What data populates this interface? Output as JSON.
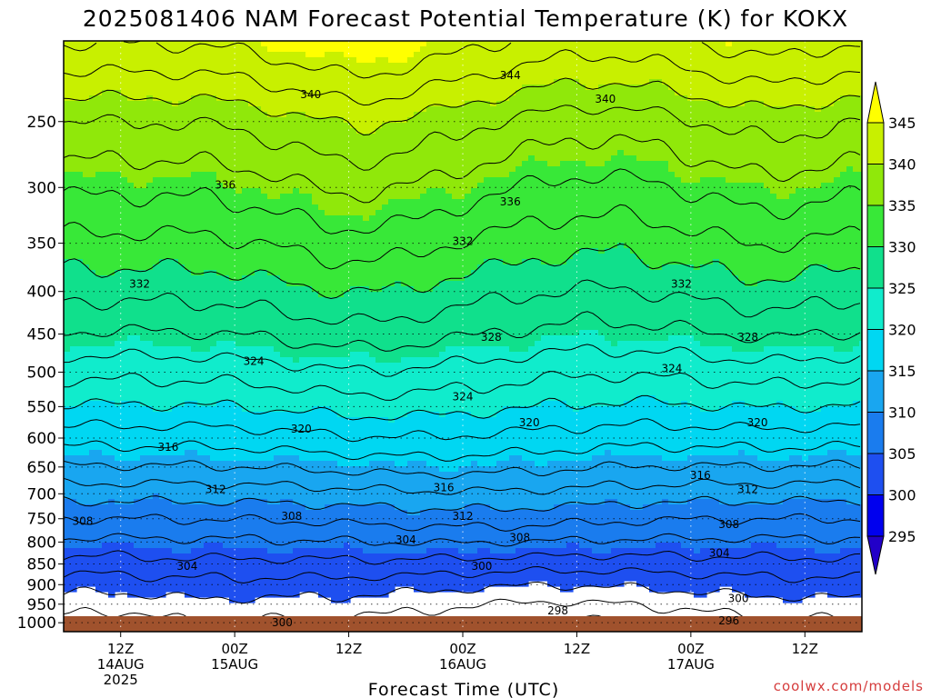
{
  "title": "2025081406 NAM Forecast Potential Temperature (K) for KOKX",
  "credit": "coolwx.com/models",
  "chart_data": {
    "type": "heatmap",
    "title": "2025081406 NAM Forecast Potential Temperature (K) for KOKX",
    "xlabel": "Forecast Time (UTC)",
    "ylabel": "",
    "x_range_hours": [
      6,
      90
    ],
    "y_range_hpa": [
      200,
      1025
    ],
    "pressure_ticks": [
      250,
      300,
      350,
      400,
      450,
      500,
      550,
      600,
      650,
      700,
      750,
      800,
      850,
      900,
      950,
      1000
    ],
    "x_ticks": [
      {
        "hour": 12,
        "lines": [
          "12Z",
          "14AUG",
          "2025"
        ]
      },
      {
        "hour": 24,
        "lines": [
          "00Z",
          "15AUG"
        ]
      },
      {
        "hour": 36,
        "lines": [
          "12Z"
        ]
      },
      {
        "hour": 48,
        "lines": [
          "00Z",
          "16AUG"
        ]
      },
      {
        "hour": 60,
        "lines": [
          "12Z"
        ]
      },
      {
        "hour": 72,
        "lines": [
          "00Z",
          "17AUG"
        ]
      },
      {
        "hour": 84,
        "lines": [
          "12Z"
        ]
      }
    ],
    "grid": true,
    "colorbar_levels": [
      295,
      300,
      305,
      310,
      315,
      320,
      325,
      330,
      335,
      340,
      345
    ],
    "colorbar_colors": [
      "#2200c8",
      "#0000ee",
      "#1e4ff0",
      "#1a7cee",
      "#19a6f0",
      "#00d7f2",
      "#10eccc",
      "#10e08c",
      "#38e838",
      "#90e80a",
      "#c8f000",
      "#ffff00"
    ],
    "level_values": [
      {
        "p": 1000,
        "theta": 297.8
      },
      {
        "p": 950,
        "theta": 299.4
      },
      {
        "p": 900,
        "theta": 301.3
      },
      {
        "p": 850,
        "theta": 303.4
      },
      {
        "p": 800,
        "theta": 305.6
      },
      {
        "p": 750,
        "theta": 308.0
      },
      {
        "p": 700,
        "theta": 310.8
      },
      {
        "p": 650,
        "theta": 313.8
      },
      {
        "p": 600,
        "theta": 316.8
      },
      {
        "p": 550,
        "theta": 319.8
      },
      {
        "p": 500,
        "theta": 322.6
      },
      {
        "p": 450,
        "theta": 325.8
      },
      {
        "p": 400,
        "theta": 328.6
      },
      {
        "p": 350,
        "theta": 331.4
      },
      {
        "p": 300,
        "theta": 334.4
      },
      {
        "p": 250,
        "theta": 338.0
      },
      {
        "p": 200,
        "theta": 344.2
      }
    ],
    "contour_interval": 2,
    "contour_labels": [
      {
        "value": "340",
        "hour": 32,
        "p": 232
      },
      {
        "value": "344",
        "hour": 53,
        "p": 220
      },
      {
        "value": "340",
        "hour": 63,
        "p": 235
      },
      {
        "value": "336",
        "hour": 23,
        "p": 298
      },
      {
        "value": "336",
        "hour": 53,
        "p": 312
      },
      {
        "value": "332",
        "hour": 48,
        "p": 348
      },
      {
        "value": "332",
        "hour": 14,
        "p": 392
      },
      {
        "value": "332",
        "hour": 71,
        "p": 392
      },
      {
        "value": "328",
        "hour": 51,
        "p": 454
      },
      {
        "value": "328",
        "hour": 78,
        "p": 454
      },
      {
        "value": "324",
        "hour": 26,
        "p": 485
      },
      {
        "value": "324",
        "hour": 70,
        "p": 495
      },
      {
        "value": "324",
        "hour": 48,
        "p": 535
      },
      {
        "value": "320",
        "hour": 31,
        "p": 585
      },
      {
        "value": "320",
        "hour": 55,
        "p": 575
      },
      {
        "value": "320",
        "hour": 79,
        "p": 575
      },
      {
        "value": "316",
        "hour": 17,
        "p": 615
      },
      {
        "value": "316",
        "hour": 46,
        "p": 688
      },
      {
        "value": "316",
        "hour": 73,
        "p": 665
      },
      {
        "value": "312",
        "hour": 22,
        "p": 692
      },
      {
        "value": "312",
        "hour": 48,
        "p": 745
      },
      {
        "value": "312",
        "hour": 78,
        "p": 692
      },
      {
        "value": "308",
        "hour": 8,
        "p": 755
      },
      {
        "value": "308",
        "hour": 30,
        "p": 745
      },
      {
        "value": "308",
        "hour": 54,
        "p": 790
      },
      {
        "value": "308",
        "hour": 76,
        "p": 762
      },
      {
        "value": "304",
        "hour": 42,
        "p": 795
      },
      {
        "value": "304",
        "hour": 19,
        "p": 855
      },
      {
        "value": "304",
        "hour": 75,
        "p": 825
      },
      {
        "value": "300",
        "hour": 50,
        "p": 855
      },
      {
        "value": "300",
        "hour": 77,
        "p": 935
      },
      {
        "value": "300",
        "hour": 29,
        "p": 1000
      },
      {
        "value": "298",
        "hour": 58,
        "p": 968
      },
      {
        "value": "296",
        "hour": 76,
        "p": 995
      }
    ]
  }
}
